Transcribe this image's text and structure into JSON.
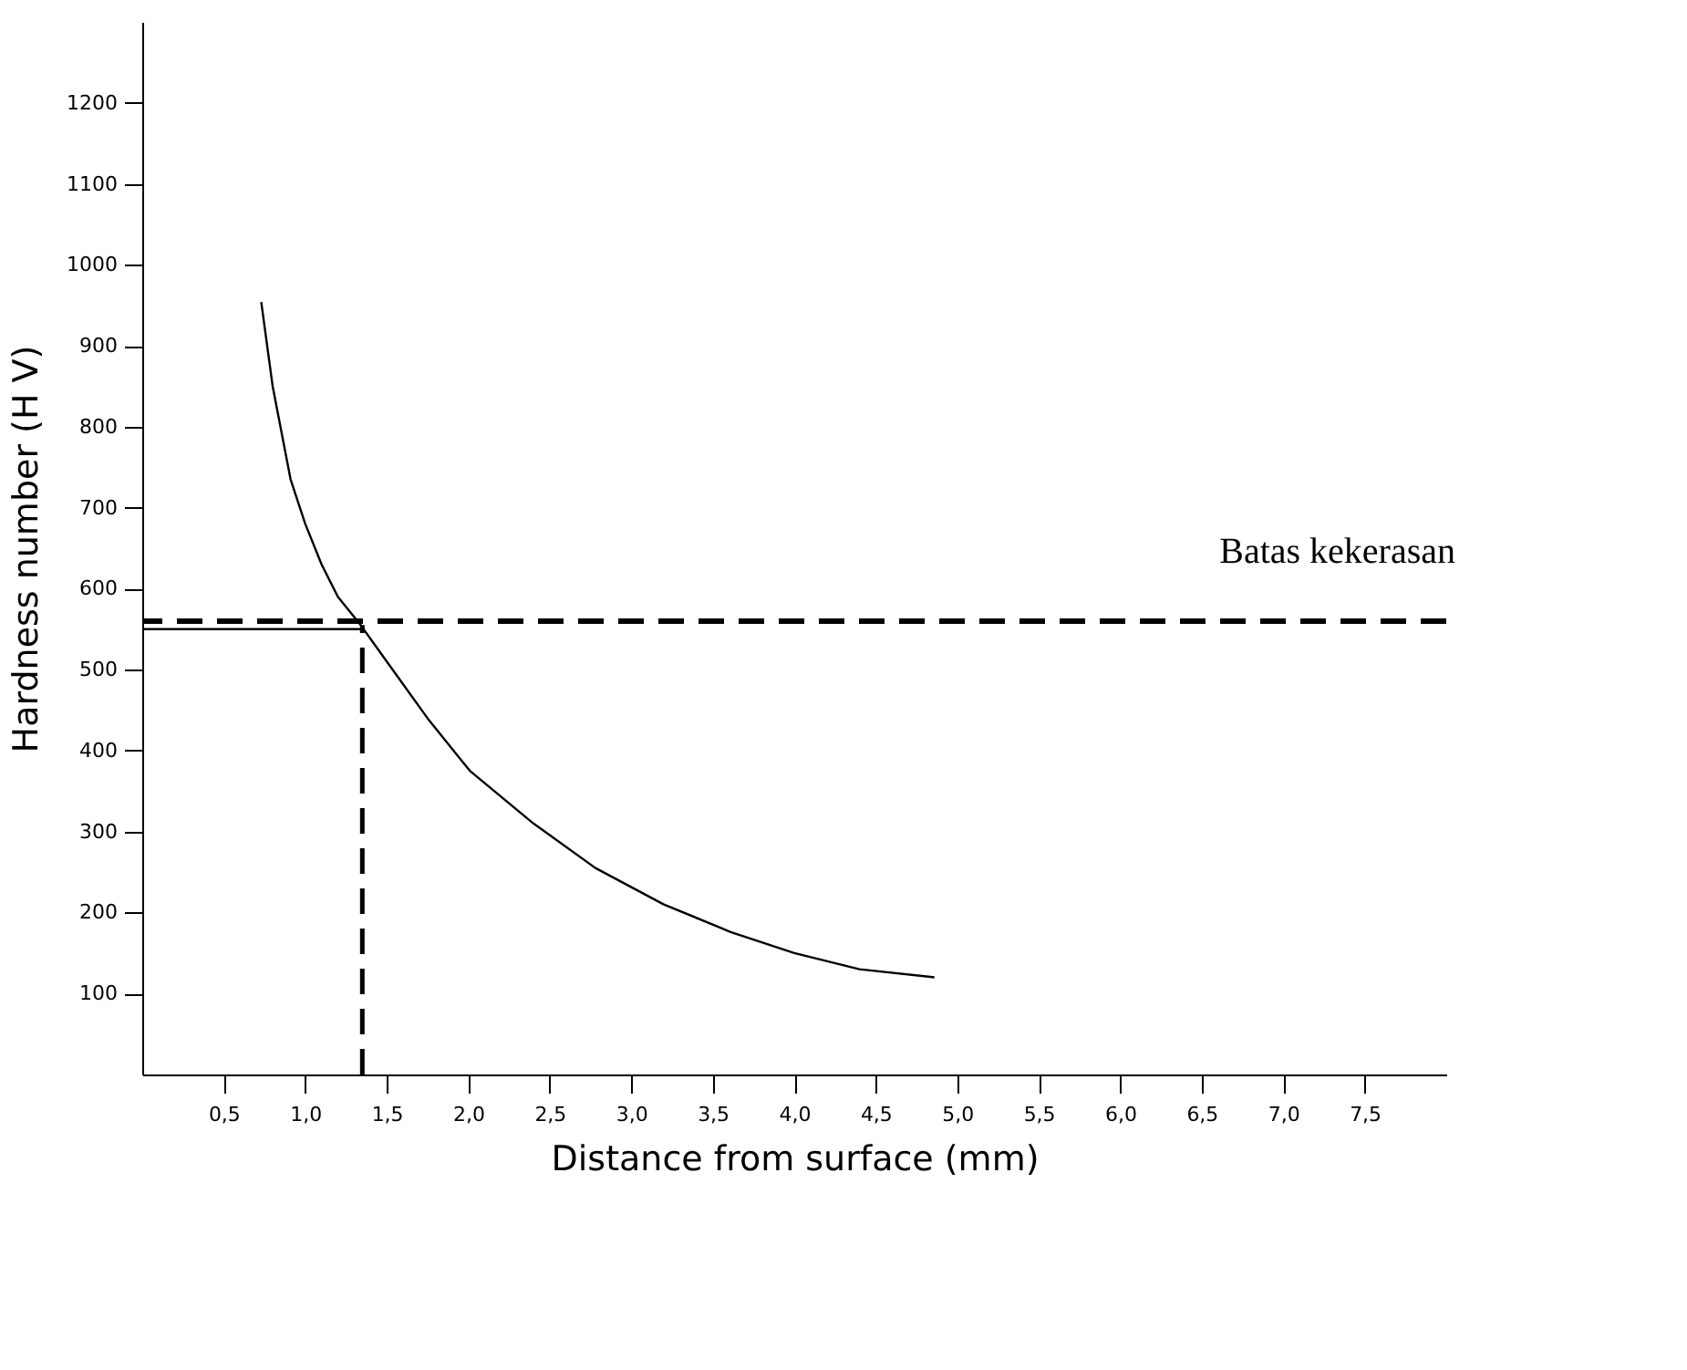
{
  "chart_data": {
    "type": "line",
    "xlabel": "Distance from surface (mm)",
    "ylabel": "Hardness number (H V)",
    "series": [
      {
        "color": "#000000",
        "x": [
          0.73,
          0.8,
          0.91,
          1.0,
          1.1,
          1.2,
          1.34,
          1.5,
          1.75,
          2.01,
          2.4,
          2.78,
          3.2,
          3.61,
          4.0,
          4.4,
          4.86
        ],
        "values": [
          954,
          850,
          735,
          680,
          630,
          590,
          555,
          510,
          440,
          375,
          310,
          255,
          210,
          176,
          150,
          130,
          120
        ]
      },
      {
        "color": "#000000",
        "x": [
          1.35,
          1.35
        ],
        "values": [
          0,
          555
        ],
        "line_style": "dashed"
      },
      {
        "color": "#000000",
        "x": [
          0,
          1.35
        ],
        "values": [
          550,
          550
        ]
      }
    ],
    "ref_lines": [
      {
        "axis": "y",
        "value": 560,
        "label": "Batas kekerasan",
        "color": "#000000",
        "line_style": "dashed"
      }
    ],
    "xlim": [
      0,
      8
    ],
    "ylim": [
      0,
      1300
    ],
    "xticks": [
      {
        "value": 0.5,
        "label": "0,5"
      },
      {
        "value": 1.0,
        "label": "1,0"
      },
      {
        "value": 1.5,
        "label": "1,5"
      },
      {
        "value": 2.0,
        "label": "2,0"
      },
      {
        "value": 2.5,
        "label": "2,5"
      },
      {
        "value": 3.0,
        "label": "3,0"
      },
      {
        "value": 3.5,
        "label": "3,5"
      },
      {
        "value": 4.0,
        "label": "4,0"
      },
      {
        "value": 4.5,
        "label": "4,5"
      },
      {
        "value": 5.0,
        "label": "5,0"
      },
      {
        "value": 5.5,
        "label": "5,5"
      },
      {
        "value": 6.0,
        "label": "6,0"
      },
      {
        "value": 6.5,
        "label": "6,5"
      },
      {
        "value": 7.0,
        "label": "7,0"
      },
      {
        "value": 7.5,
        "label": "7,5"
      }
    ],
    "yticks": [
      100,
      200,
      300,
      400,
      500,
      600,
      700,
      800,
      900,
      1000,
      1100,
      1200
    ],
    "grid": false,
    "marker": "none",
    "line_style": "solid"
  }
}
